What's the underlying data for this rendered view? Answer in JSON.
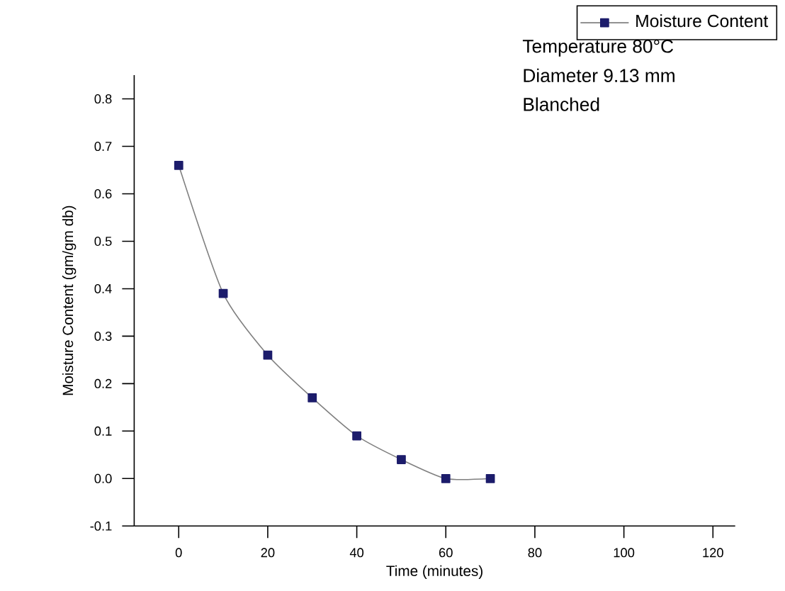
{
  "chart_data": {
    "type": "line",
    "xlabel": "Time (minutes)",
    "ylabel": "Moisture Content (gm/gm db)",
    "x": [
      0,
      10,
      20,
      30,
      40,
      50,
      60,
      70
    ],
    "series": [
      {
        "name": "Moisture Content",
        "color": "#1c1c6b",
        "values": [
          0.66,
          0.39,
          0.26,
          0.17,
          0.09,
          0.04,
          0.0,
          0.0
        ]
      }
    ],
    "xlim": [
      -10,
      125
    ],
    "xticks": [
      0,
      20,
      40,
      60,
      80,
      100,
      120
    ],
    "ylim": [
      -0.1,
      0.85
    ],
    "yticks": [
      {
        "value": -0.1,
        "label": "-0.1"
      },
      {
        "value": 0.0,
        "label": "0.0"
      },
      {
        "value": 0.1,
        "label": "0.1"
      },
      {
        "value": 0.2,
        "label": "0.2"
      },
      {
        "value": 0.3,
        "label": "0.3"
      },
      {
        "value": 0.4,
        "label": "0.4"
      },
      {
        "value": 0.5,
        "label": "0.5"
      },
      {
        "value": 0.6,
        "label": "0.6"
      },
      {
        "value": 0.7,
        "label": "0.7"
      },
      {
        "value": 0.8,
        "label": "0.8"
      }
    ],
    "annotations": [
      "Temperature 80°C",
      "Diameter 9.13 mm",
      "Blanched"
    ],
    "legend": "top right",
    "marker": "square",
    "line_style": "solid",
    "grid": false
  }
}
